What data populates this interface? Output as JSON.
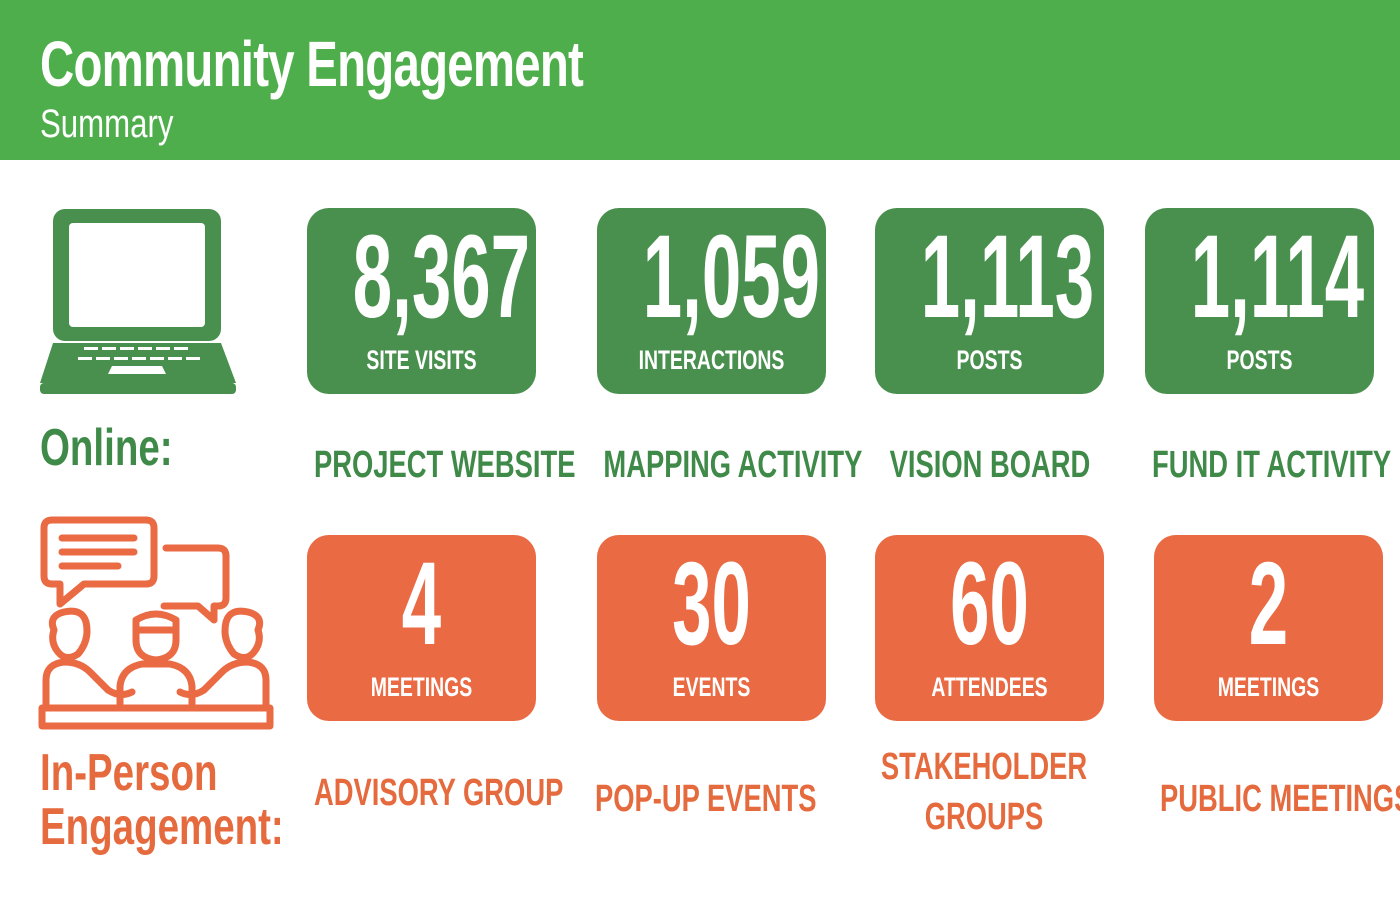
{
  "header": {
    "title": "Community Engagement",
    "subtitle": "Summary"
  },
  "colors": {
    "header_green": "#4fae4c",
    "tile_green": "#49904f",
    "text_green": "#3f8a49",
    "orange": "#e96a43"
  },
  "online": {
    "label": "Online:",
    "icon": "laptop-icon",
    "stats": [
      {
        "value": "8,367",
        "unit": "SITE VISITS",
        "caption": "PROJECT WEBSITE"
      },
      {
        "value": "1,059",
        "unit": "INTERACTIONS",
        "caption": "MAPPING ACTIVITY"
      },
      {
        "value": "1,113",
        "unit": "POSTS",
        "caption": "VISION BOARD"
      },
      {
        "value": "1,114",
        "unit": "POSTS",
        "caption": "FUND IT ACTIVITY"
      }
    ]
  },
  "in_person": {
    "label_line1": "In-Person",
    "label_line2": "Engagement:",
    "icon": "group-discussion-icon",
    "stats": [
      {
        "value": "4",
        "unit": "MEETINGS",
        "caption": "ADVISORY GROUP"
      },
      {
        "value": "30",
        "unit": "EVENTS",
        "caption": "POP-UP EVENTS"
      },
      {
        "value": "60",
        "unit": "ATTENDEES",
        "caption_line1": "STAKEHOLDER",
        "caption_line2": "GROUPS"
      },
      {
        "value": "2",
        "unit": "MEETINGS",
        "caption": "PUBLIC MEETINGS"
      }
    ]
  }
}
